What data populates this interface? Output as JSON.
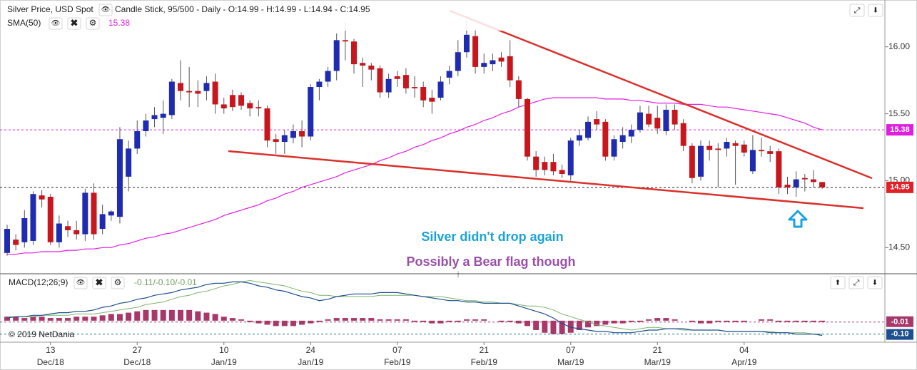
{
  "chart_data": [
    {
      "type": "candlestick",
      "title": "Silver Price, USD Spot",
      "subtitle": "Candle Stick, 95/500 - Daily - O:14.99 - H:14.99 - L:14.94 - C:14.95",
      "categories": [
        null,
        null,
        null,
        null,
        null,
        {
          "day": "13",
          "month": "Dec/18"
        },
        null,
        null,
        null,
        null,
        null,
        null,
        null,
        null,
        null,
        {
          "day": "27",
          "month": "Dec/18"
        },
        null,
        null,
        null,
        null,
        null,
        null,
        null,
        null,
        null,
        {
          "day": "10",
          "month": "Jan/19"
        },
        null,
        null,
        null,
        null,
        null,
        null,
        null,
        null,
        null,
        {
          "day": "24",
          "month": "Jan/19"
        },
        null,
        null,
        null,
        null,
        null,
        null,
        null,
        null,
        null,
        {
          "day": "07",
          "month": "Feb/19"
        },
        null,
        null,
        null,
        null,
        null,
        null,
        null,
        null,
        null,
        {
          "day": "21",
          "month": "Feb/19"
        },
        null,
        null,
        null,
        null,
        null,
        null,
        null,
        null,
        null,
        {
          "day": "07",
          "month": "Mar/19"
        },
        null,
        null,
        null,
        null,
        null,
        null,
        null,
        null,
        null,
        {
          "day": "21",
          "month": "Mar/19"
        },
        null,
        null,
        null,
        null,
        null,
        null,
        null,
        null,
        null,
        {
          "day": "04",
          "month": "Apr/19"
        },
        null,
        null,
        null,
        null,
        null,
        null,
        null,
        null,
        null
      ],
      "open": [
        14.46,
        14.56,
        14.54,
        14.55,
        14.89,
        14.88,
        14.54,
        14.66,
        14.63,
        14.6,
        14.91,
        14.64,
        14.74,
        14.73,
        15.03,
        15.24,
        15.37,
        15.46,
        15.47,
        15.49,
        15.73,
        15.67,
        15.67,
        15.67,
        15.74,
        15.57,
        15.64,
        15.64,
        15.58,
        15.55,
        15.54,
        15.31,
        15.29,
        15.32,
        15.37,
        15.33,
        15.7,
        15.74,
        15.82,
        16.05,
        16.04,
        15.88,
        15.86,
        15.84,
        15.66,
        15.78,
        15.79,
        15.7,
        15.7,
        15.62,
        15.62,
        15.77,
        15.82,
        15.96,
        16.08,
        15.85,
        15.87,
        15.92,
        15.93,
        15.75,
        15.61,
        15.18,
        15.14,
        15.14,
        15.08,
        15.04,
        15.3,
        15.32,
        15.46,
        15.44,
        15.18,
        15.29,
        15.33,
        15.38,
        15.5,
        15.47,
        15.37,
        15.53,
        15.43,
        15.26,
        15.03,
        15.26,
        15.24,
        15.24,
        15.28,
        15.27,
        15.07,
        15.23,
        15.22,
        15.22,
        14.97,
        14.95,
        15.02,
        15.01,
        14.99
      ],
      "high": [
        14.67,
        14.6,
        14.78,
        14.92,
        14.93,
        14.9,
        14.74,
        14.7,
        14.7,
        14.94,
        14.98,
        14.82,
        14.78,
        15.4,
        15.3,
        15.45,
        15.5,
        15.55,
        15.6,
        15.76,
        15.9,
        15.85,
        15.75,
        15.78,
        15.8,
        15.62,
        15.68,
        15.66,
        15.6,
        15.6,
        15.56,
        15.35,
        15.38,
        15.42,
        15.45,
        15.72,
        15.76,
        15.85,
        16.1,
        16.18,
        16.06,
        15.92,
        15.88,
        15.86,
        15.8,
        15.82,
        15.84,
        15.78,
        15.74,
        15.68,
        15.78,
        15.86,
        16.05,
        16.2,
        16.14,
        15.95,
        15.95,
        15.96,
        16.05,
        15.78,
        15.62,
        15.22,
        15.18,
        15.2,
        15.12,
        15.32,
        15.38,
        15.48,
        15.52,
        15.46,
        15.34,
        15.4,
        15.42,
        15.56,
        15.56,
        15.56,
        15.57,
        15.57,
        15.46,
        15.28,
        15.3,
        15.3,
        15.28,
        15.32,
        15.3,
        15.3,
        15.34,
        15.32,
        15.26,
        15.24,
        15.03,
        15.07,
        15.05,
        15.08,
        14.99
      ],
      "low": [
        14.44,
        14.48,
        14.5,
        14.52,
        14.8,
        14.52,
        14.5,
        14.58,
        14.56,
        14.55,
        14.56,
        14.6,
        14.7,
        14.68,
        14.92,
        15.2,
        15.33,
        15.4,
        15.35,
        15.46,
        15.6,
        15.55,
        15.55,
        15.6,
        15.5,
        15.5,
        15.52,
        15.53,
        15.48,
        15.48,
        15.25,
        15.2,
        15.2,
        15.28,
        15.25,
        15.3,
        15.6,
        15.7,
        15.75,
        15.9,
        15.8,
        15.7,
        15.75,
        15.62,
        15.62,
        15.7,
        15.65,
        15.62,
        15.55,
        15.5,
        15.6,
        15.72,
        15.78,
        15.92,
        15.8,
        15.8,
        15.82,
        15.85,
        15.7,
        15.55,
        15.15,
        15.03,
        15.04,
        15.04,
        15.02,
        15.0,
        15.26,
        15.3,
        15.38,
        15.15,
        15.15,
        15.24,
        15.28,
        15.36,
        15.4,
        15.35,
        15.34,
        15.38,
        15.22,
        14.98,
        15.0,
        15.15,
        14.95,
        15.18,
        14.97,
        15.18,
        15.05,
        15.18,
        15.14,
        14.9,
        14.9,
        14.88,
        14.92,
        14.95,
        14.94
      ],
      "close": [
        14.64,
        14.52,
        14.72,
        14.9,
        14.86,
        14.54,
        14.68,
        14.63,
        14.6,
        14.91,
        14.6,
        14.75,
        14.77,
        15.31,
        15.24,
        15.37,
        15.45,
        15.49,
        15.5,
        15.74,
        15.67,
        15.66,
        15.65,
        15.73,
        15.57,
        15.54,
        15.55,
        15.56,
        15.54,
        15.54,
        15.3,
        15.29,
        15.34,
        15.37,
        15.33,
        15.7,
        15.74,
        15.82,
        16.05,
        16.04,
        15.87,
        15.86,
        15.83,
        15.66,
        15.76,
        15.76,
        15.69,
        15.69,
        15.6,
        15.59,
        15.74,
        15.82,
        15.96,
        16.09,
        15.85,
        15.88,
        15.9,
        15.89,
        15.75,
        15.61,
        15.18,
        15.08,
        15.08,
        15.07,
        15.05,
        15.3,
        15.34,
        15.44,
        15.42,
        15.18,
        15.31,
        15.34,
        15.38,
        15.51,
        15.42,
        15.39,
        15.53,
        15.42,
        15.26,
        15.02,
        15.26,
        15.23,
        15.23,
        15.29,
        15.26,
        15.21,
        15.23,
        15.22,
        15.2,
        14.95,
        14.95,
        15.01,
        15.01,
        14.99,
        14.95
      ],
      "up_color": "#1f2bb0",
      "down_color": "#c8161d",
      "ylim": [
        14.31,
        16.35
      ],
      "yticks": [
        {
          "value": 16,
          "label": "16.00"
        },
        {
          "value": 15.5,
          "label": "15.50"
        },
        {
          "value": 15,
          "label": "15.00"
        },
        {
          "value": 14.5,
          "label": "14.50"
        }
      ],
      "sma": {
        "name": "SMA(50)",
        "color": "#e01ee0",
        "last": 15.38,
        "values": [
          14.45,
          14.45,
          14.46,
          14.46,
          14.47,
          14.47,
          14.47,
          14.48,
          14.48,
          14.49,
          14.49,
          14.5,
          14.5,
          14.52,
          14.53,
          14.55,
          14.57,
          14.58,
          14.6,
          14.61,
          14.63,
          14.65,
          14.67,
          14.69,
          14.71,
          14.74,
          14.76,
          14.78,
          14.8,
          14.82,
          14.85,
          14.87,
          14.9,
          14.92,
          14.95,
          14.97,
          14.99,
          15.01,
          15.03,
          15.06,
          15.08,
          15.1,
          15.12,
          15.15,
          15.17,
          15.2,
          15.22,
          15.25,
          15.27,
          15.3,
          15.32,
          15.35,
          15.37,
          15.4,
          15.42,
          15.45,
          15.47,
          15.5,
          15.52,
          15.55,
          15.57,
          15.59,
          15.61,
          15.62,
          15.62,
          15.62,
          15.62,
          15.62,
          15.62,
          15.61,
          15.61,
          15.61,
          15.6,
          15.6,
          15.59,
          15.58,
          15.58,
          15.58,
          15.57,
          15.57,
          15.57,
          15.56,
          15.55,
          15.55,
          15.54,
          15.53,
          15.52,
          15.51,
          15.5,
          15.49,
          15.47,
          15.45,
          15.43,
          15.4,
          15.38
        ]
      },
      "last_price": 14.95,
      "last_price_color": "#e01f26",
      "annotations": [
        "Silver didn't drop again",
        "Possibly a Bear flag though"
      ],
      "copyright": "© 2019 NetDania"
    },
    {
      "type": "macd",
      "title": "MACD(12;26;9)",
      "subtitle": "-0.11/-0.10/-0.01",
      "ylim": [
        -0.15,
        0.34
      ],
      "macd_line": {
        "color": "#1b4f8f",
        "values": [
          0.02,
          0.03,
          0.03,
          0.04,
          0.04,
          0.05,
          0.06,
          0.06,
          0.07,
          0.07,
          0.08,
          0.1,
          0.11,
          0.13,
          0.14,
          0.16,
          0.17,
          0.19,
          0.2,
          0.21,
          0.23,
          0.24,
          0.25,
          0.27,
          0.28,
          0.28,
          0.29,
          0.29,
          0.28,
          0.26,
          0.25,
          0.23,
          0.22,
          0.2,
          0.18,
          0.17,
          0.15,
          0.16,
          0.18,
          0.19,
          0.2,
          0.2,
          0.2,
          0.21,
          0.21,
          0.21,
          0.2,
          0.19,
          0.18,
          0.17,
          0.16,
          0.15,
          0.15,
          0.14,
          0.14,
          0.13,
          0.13,
          0.13,
          0.13,
          0.11,
          0.09,
          0.07,
          0.05,
          0.02,
          -0.02,
          -0.05,
          -0.06,
          -0.07,
          -0.08,
          -0.08,
          -0.09,
          -0.09,
          -0.09,
          -0.08,
          -0.07,
          -0.07,
          -0.06,
          -0.06,
          -0.06,
          -0.07,
          -0.07,
          -0.07,
          -0.07,
          -0.08,
          -0.08,
          -0.08,
          -0.08,
          -0.08,
          -0.09,
          -0.09,
          -0.09,
          -0.1,
          -0.1,
          -0.1,
          -0.11
        ]
      },
      "signal_line": {
        "color": "#7fb36a",
        "values": [
          0.03,
          0.03,
          0.03,
          0.03,
          0.04,
          0.04,
          0.04,
          0.04,
          0.05,
          0.05,
          0.05,
          0.06,
          0.07,
          0.08,
          0.09,
          0.1,
          0.12,
          0.13,
          0.14,
          0.16,
          0.18,
          0.19,
          0.21,
          0.22,
          0.24,
          0.26,
          0.27,
          0.29,
          0.3,
          0.29,
          0.28,
          0.27,
          0.26,
          0.24,
          0.22,
          0.21,
          0.19,
          0.19,
          0.18,
          0.18,
          0.18,
          0.18,
          0.18,
          0.19,
          0.19,
          0.19,
          0.19,
          0.19,
          0.18,
          0.18,
          0.18,
          0.17,
          0.16,
          0.15,
          0.15,
          0.14,
          0.14,
          0.13,
          0.13,
          0.12,
          0.11,
          0.11,
          0.1,
          0.08,
          0.05,
          0.03,
          0.01,
          -0.01,
          -0.03,
          -0.04,
          -0.05,
          -0.06,
          -0.07,
          -0.06,
          -0.05,
          -0.05,
          -0.06,
          -0.06,
          -0.07,
          -0.07,
          -0.07,
          -0.07,
          -0.07,
          -0.08,
          -0.08,
          -0.08,
          -0.08,
          -0.08,
          -0.08,
          -0.09,
          -0.09,
          -0.09,
          -0.09,
          -0.1,
          -0.1
        ]
      },
      "histogram": {
        "color": "#a8376a",
        "values": [
          0.03,
          0.03,
          0.02,
          0.03,
          0.03,
          0.02,
          0.02,
          0.02,
          0.03,
          0.03,
          0.03,
          0.04,
          0.05,
          0.05,
          0.06,
          0.07,
          0.08,
          0.08,
          0.08,
          0.08,
          0.08,
          0.08,
          0.07,
          0.06,
          0.05,
          0.03,
          0.02,
          0.01,
          -0.01,
          -0.02,
          -0.03,
          -0.04,
          -0.04,
          -0.04,
          -0.03,
          -0.02,
          -0.01,
          0.01,
          0.02,
          0.02,
          0.02,
          0.02,
          0.02,
          0.01,
          0.01,
          0.01,
          0.01,
          -0.01,
          -0.01,
          -0.02,
          -0.02,
          -0.01,
          -0.01,
          0.01,
          0.01,
          0.01,
          0,
          -0.01,
          -0.01,
          -0.02,
          -0.04,
          -0.07,
          -0.09,
          -0.1,
          -0.1,
          -0.09,
          -0.07,
          -0.05,
          -0.04,
          -0.03,
          -0.02,
          -0.02,
          -0.01,
          -0.01,
          0.01,
          0.02,
          0.02,
          0.01,
          0,
          -0.01,
          -0.02,
          -0.02,
          -0.01,
          -0.01,
          -0.01,
          -0.01,
          0,
          0.01,
          0.01,
          -0.01,
          -0.01,
          -0.01,
          -0.01,
          -0.01,
          -0.01
        ]
      },
      "hist_last": -0.01,
      "signal_last": {
        "value": -0.1,
        "label": "-0.10"
      }
    }
  ]
}
